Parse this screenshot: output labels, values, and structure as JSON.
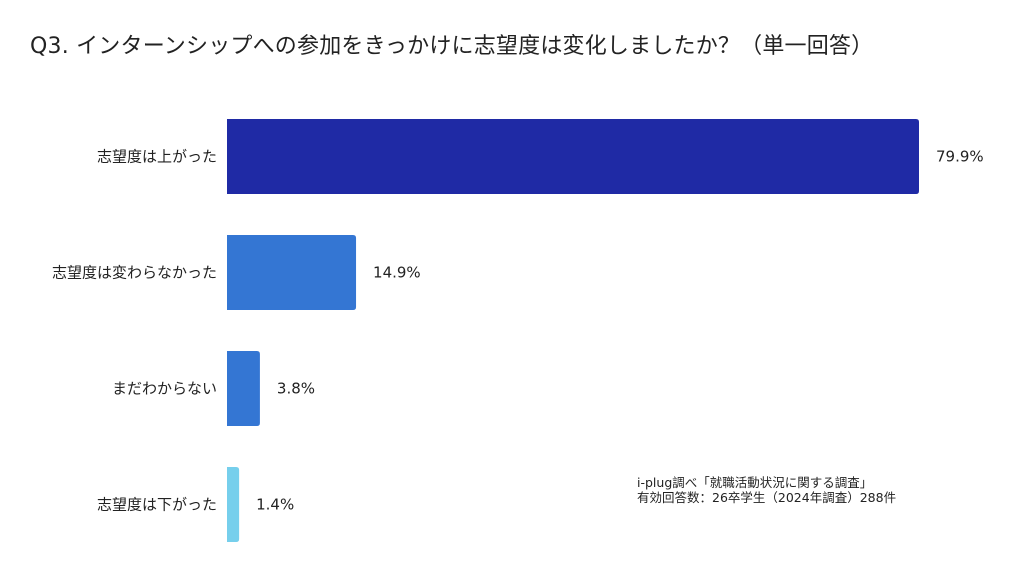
{
  "chart_data": {
    "type": "bar",
    "orientation": "horizontal",
    "title": "Q3. インターンシップへの参加をきっかけに志望度は変化しましたか？（単一回答）",
    "categories": [
      "志望度は上がった",
      "志望度は変わらなかった",
      "まだわからない",
      "志望度は下がった"
    ],
    "values": [
      79.9,
      14.9,
      3.8,
      1.4
    ],
    "data_labels": [
      "79.9%",
      "14.9%",
      "3.8%",
      "1.4%"
    ],
    "colors": [
      "#1f2aa5",
      "#3476d3",
      "#3476d3",
      "#76cfec"
    ],
    "xlabel": "",
    "ylabel": "",
    "xlim": [
      0,
      80
    ],
    "grid": false,
    "legend": "none"
  },
  "note": {
    "line1": "i-plug調べ「就職活動状況に関する調査」",
    "line2": "有効回答数：26卒学生（2024年調査）288件"
  }
}
